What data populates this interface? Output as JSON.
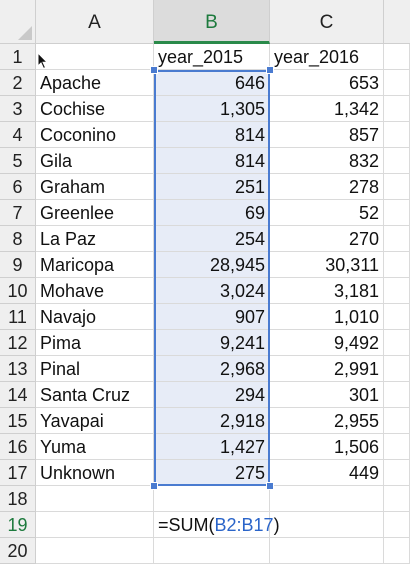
{
  "columns": [
    "A",
    "B",
    "C"
  ],
  "active_column": "B",
  "row_numbers": [
    "1",
    "2",
    "3",
    "4",
    "5",
    "6",
    "7",
    "8",
    "9",
    "10",
    "11",
    "12",
    "13",
    "14",
    "15",
    "16",
    "17",
    "18",
    "19",
    "20"
  ],
  "header_row": {
    "a": "",
    "b": "year_2015",
    "c": "year_2016"
  },
  "rows": [
    {
      "county": "Apache",
      "y2015": "646",
      "y2016": "653"
    },
    {
      "county": "Cochise",
      "y2015": "1,305",
      "y2016": "1,342"
    },
    {
      "county": "Coconino",
      "y2015": "814",
      "y2016": "857"
    },
    {
      "county": "Gila",
      "y2015": "814",
      "y2016": "832"
    },
    {
      "county": "Graham",
      "y2015": "251",
      "y2016": "278"
    },
    {
      "county": "Greenlee",
      "y2015": "69",
      "y2016": "52"
    },
    {
      "county": "La Paz",
      "y2015": "254",
      "y2016": "270"
    },
    {
      "county": "Maricopa",
      "y2015": "28,945",
      "y2016": "30,311"
    },
    {
      "county": "Mohave",
      "y2015": "3,024",
      "y2016": "3,181"
    },
    {
      "county": "Navajo",
      "y2015": "907",
      "y2016": "1,010"
    },
    {
      "county": "Pima",
      "y2015": "9,241",
      "y2016": "9,492"
    },
    {
      "county": "Pinal",
      "y2015": "2,968",
      "y2016": "2,991"
    },
    {
      "county": "Santa Cruz",
      "y2015": "294",
      "y2016": "301"
    },
    {
      "county": "Yavapai",
      "y2015": "2,918",
      "y2016": "2,955"
    },
    {
      "county": "Yuma",
      "y2015": "1,427",
      "y2016": "1,506"
    },
    {
      "county": "Unknown",
      "y2015": "275",
      "y2016": "449"
    }
  ],
  "editing_row": "19",
  "formula": {
    "prefix": "=SUM(",
    "range": "B2:B17",
    "suffix": ")"
  },
  "colors": {
    "header_bg": "#efefef",
    "active_header_bg": "#dcdcdc",
    "active_text": "#1d7a3d",
    "range_fill": "#e7ecf7",
    "range_border": "#4a7bd0",
    "ref_text": "#2a64c9"
  },
  "icons": {
    "corner": "select-all-triangle",
    "cursor": "mouse-pointer-icon"
  }
}
